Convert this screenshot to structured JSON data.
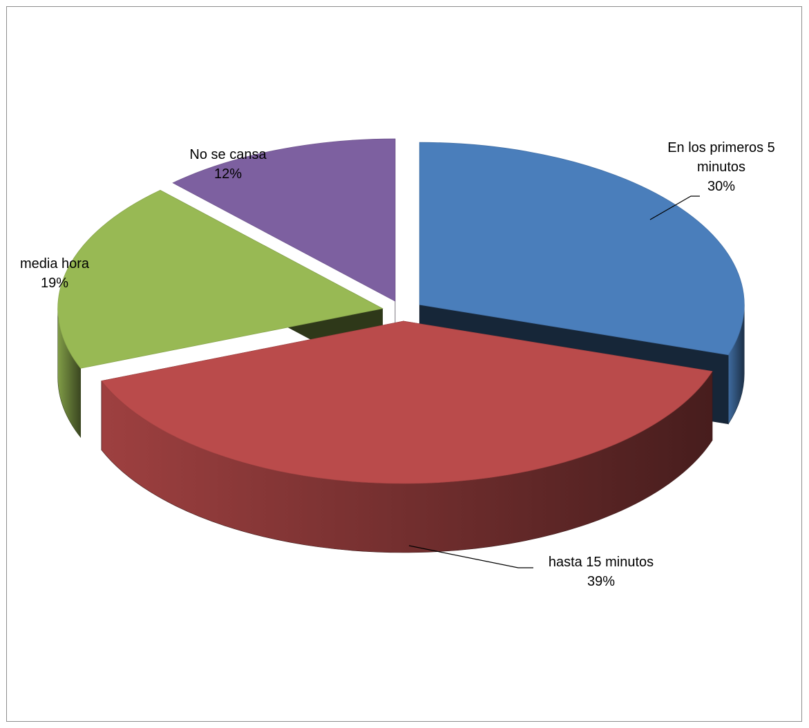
{
  "chart_data": {
    "type": "pie",
    "title": "",
    "style": "3d-exploded",
    "legend": "none",
    "slices": [
      {
        "label": "En los primeros 5 minutos",
        "label_lines": [
          "En los primeros 5",
          "minutos"
        ],
        "value": 30,
        "value_text": "30%",
        "color": "#4a7ebb"
      },
      {
        "label": "hasta 15 minutos",
        "label_lines": [
          "hasta 15 minutos"
        ],
        "value": 39,
        "value_text": "39%",
        "color": "#ba4b4b"
      },
      {
        "label": "media hora",
        "label_lines": [
          "media hora"
        ],
        "value": 19,
        "value_text": "19%",
        "color": "#98b954"
      },
      {
        "label": "No se cansa",
        "label_lines": [
          "No se cansa"
        ],
        "value": 12,
        "value_text": "12%",
        "color": "#7d60a0"
      }
    ]
  }
}
